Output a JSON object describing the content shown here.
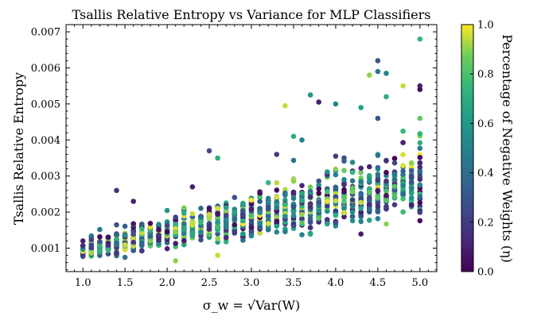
{
  "chart_data": {
    "type": "scatter",
    "title": "Tsallis Relative Entropy vs Variance for MLP Classifiers",
    "xlabel": "σ_w = √Var(W)",
    "ylabel": "Tsallis Relative Entropy",
    "colorbar_label": "Percentage of Negative Weights (η)",
    "xlim": [
      0.8,
      5.2
    ],
    "ylim": [
      0.00035,
      0.0072
    ],
    "colorbar_range": [
      0.0,
      1.0
    ],
    "colormap": "viridis",
    "x_ticks": [
      1.0,
      1.5,
      2.0,
      2.5,
      3.0,
      3.5,
      4.0,
      4.5,
      5.0
    ],
    "x_tick_labels": [
      "1.0",
      "1.5",
      "2.0",
      "2.5",
      "3.0",
      "3.5",
      "4.0",
      "4.5",
      "5.0"
    ],
    "y_ticks": [
      0.001,
      0.002,
      0.003,
      0.004,
      0.005,
      0.006,
      0.007
    ],
    "y_tick_labels": [
      "0.001",
      "0.002",
      "0.003",
      "0.004",
      "0.005",
      "0.006",
      "0.007"
    ],
    "colorbar_ticks": [
      0.0,
      0.2,
      0.4,
      0.6,
      0.8,
      1.0
    ],
    "colorbar_tick_labels": [
      "0.0",
      "0.2",
      "0.4",
      "0.6",
      "0.8",
      "1.0"
    ],
    "x_values": [
      1.0,
      1.1,
      1.2,
      1.3,
      1.4,
      1.5,
      1.6,
      1.7,
      1.8,
      1.9,
      2.0,
      2.1,
      2.2,
      2.3,
      2.4,
      2.5,
      2.6,
      2.7,
      2.8,
      2.9,
      3.0,
      3.1,
      3.2,
      3.3,
      3.4,
      3.5,
      3.6,
      3.7,
      3.8,
      3.9,
      4.0,
      4.1,
      4.2,
      4.3,
      4.4,
      4.5,
      4.6,
      4.7,
      4.8,
      4.9,
      5.0
    ],
    "trend": {
      "base": 0.00095,
      "slope_per_x": 0.00045,
      "note": "clusters of points at each x; vertical spread grows with x"
    },
    "points": [
      {
        "x": 5.0,
        "y": 0.0068,
        "c": 0.75
      },
      {
        "x": 4.5,
        "y": 0.0062,
        "c": 0.3
      },
      {
        "x": 4.5,
        "y": 0.0059,
        "c": 0.45
      },
      {
        "x": 4.4,
        "y": 0.0058,
        "c": 0.9
      },
      {
        "x": 4.6,
        "y": 0.00585,
        "c": 0.5
      },
      {
        "x": 4.8,
        "y": 0.0055,
        "c": 0.95
      },
      {
        "x": 5.0,
        "y": 0.0055,
        "c": 0.1
      },
      {
        "x": 5.0,
        "y": 0.0054,
        "c": 0.05
      },
      {
        "x": 3.7,
        "y": 0.00525,
        "c": 0.6
      },
      {
        "x": 4.6,
        "y": 0.0052,
        "c": 0.7
      },
      {
        "x": 3.4,
        "y": 0.00495,
        "c": 0.95
      },
      {
        "x": 3.8,
        "y": 0.00505,
        "c": 0.1
      },
      {
        "x": 4.0,
        "y": 0.005,
        "c": 0.5
      },
      {
        "x": 4.3,
        "y": 0.0049,
        "c": 0.65
      },
      {
        "x": 4.5,
        "y": 0.0046,
        "c": 0.3
      },
      {
        "x": 5.0,
        "y": 0.0046,
        "c": 0.85
      },
      {
        "x": 3.5,
        "y": 0.0041,
        "c": 0.7
      },
      {
        "x": 3.6,
        "y": 0.004,
        "c": 0.5
      },
      {
        "x": 2.5,
        "y": 0.0037,
        "c": 0.25
      },
      {
        "x": 3.3,
        "y": 0.0036,
        "c": 0.2
      },
      {
        "x": 2.6,
        "y": 0.0035,
        "c": 0.7
      },
      {
        "x": 1.4,
        "y": 0.0026,
        "c": 0.15
      },
      {
        "x": 1.6,
        "y": 0.0023,
        "c": 0.1
      },
      {
        "x": 2.3,
        "y": 0.0027,
        "c": 0.1
      },
      {
        "x": 2.6,
        "y": 0.0008,
        "c": 0.95
      },
      {
        "x": 2.1,
        "y": 0.00065,
        "c": 0.9
      },
      {
        "x": 1.0,
        "y": 0.0012,
        "c": 0.1
      }
    ]
  }
}
